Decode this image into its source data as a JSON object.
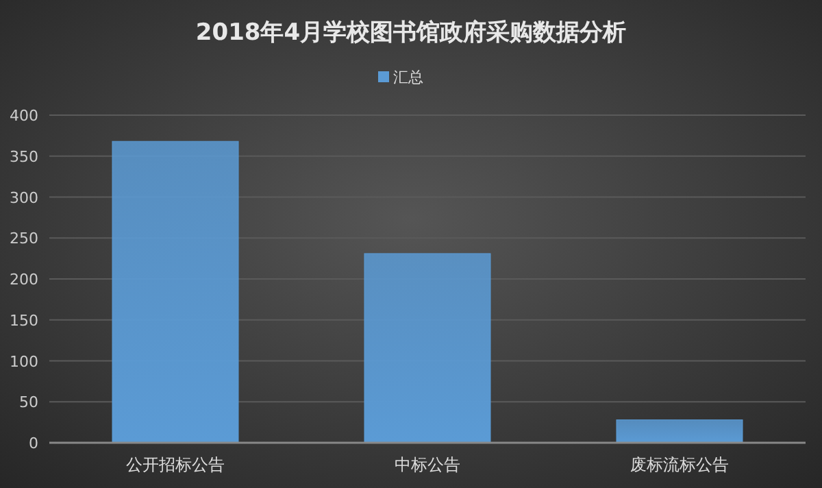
{
  "chart_data": {
    "type": "bar",
    "title": "2018年4月学校图书馆政府采购数据分析",
    "categories": [
      "公开招标公告",
      "中标公告",
      "废标流标公告"
    ],
    "series": [
      {
        "name": "汇总",
        "color": "#5b9bd5",
        "values": [
          368,
          231,
          28
        ]
      }
    ],
    "ylim": [
      0,
      400
    ],
    "yticks": [
      0,
      50,
      100,
      150,
      200,
      250,
      300,
      350,
      400
    ],
    "grid": "y",
    "legend": "top"
  }
}
